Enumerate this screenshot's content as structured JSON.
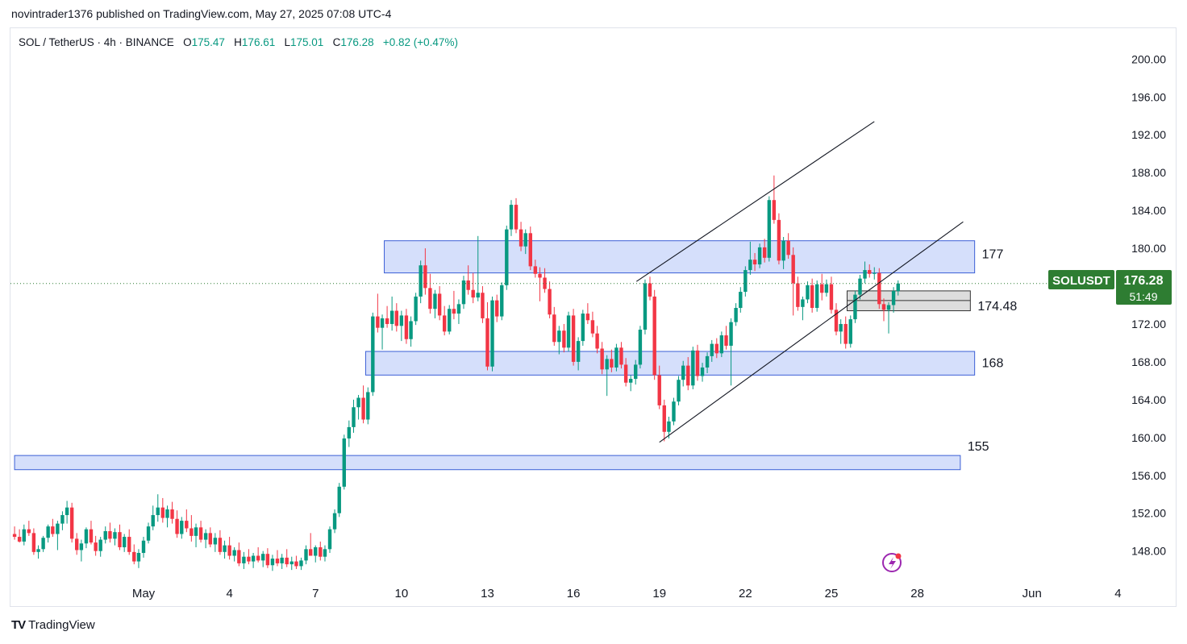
{
  "header": {
    "published_line": "novintrader1376 published on TradingView.com, May 27, 2025 07:08 UTC-4"
  },
  "legend": {
    "symbol": "SOL / TetherUS · 4h · BINANCE",
    "o_key": "O",
    "o_val": "175.47",
    "h_key": "H",
    "h_val": "176.61",
    "l_key": "L",
    "l_val": "175.01",
    "c_key": "C",
    "c_val": "176.28",
    "change": "+0.82 (+0.47%)"
  },
  "price_badge": {
    "symbol": "SOLUSDT",
    "price": "176.28",
    "countdown": "51:49",
    "color": "#2e7d32"
  },
  "footer": {
    "brand": "TradingView"
  },
  "colors": {
    "up": "#089981",
    "down": "#f23645",
    "zone_fill": "#d0dcfb",
    "zone_border": "#3b5fd6"
  },
  "chart_data": {
    "type": "candlestick",
    "timeframe": "4h",
    "y_ticks": [
      "200.00",
      "196.00",
      "192.00",
      "188.00",
      "184.00",
      "180.00",
      "176.00",
      "172.00",
      "168.00",
      "164.00",
      "160.00",
      "156.00",
      "152.00",
      "148.00"
    ],
    "ylim": [
      145.5,
      202.5
    ],
    "x_ticks": [
      {
        "label": "May",
        "day": 1
      },
      {
        "label": "4",
        "day": 4
      },
      {
        "label": "7",
        "day": 7
      },
      {
        "label": "10",
        "day": 10
      },
      {
        "label": "13",
        "day": 13
      },
      {
        "label": "16",
        "day": 16
      },
      {
        "label": "19",
        "day": 19
      },
      {
        "label": "22",
        "day": 22
      },
      {
        "label": "25",
        "day": 25
      },
      {
        "label": "28",
        "day": 28
      },
      {
        "label": "Jun",
        "day": 32
      },
      {
        "label": "4",
        "day": 35
      }
    ],
    "zones": [
      {
        "label": "177",
        "low": 177.4,
        "high": 180.8,
        "x_start_day": 9.4,
        "x_end_day": 30.0
      },
      {
        "label": "168",
        "low": 166.6,
        "high": 169.1,
        "x_start_day": 8.75,
        "x_end_day": 30.0
      },
      {
        "label": "155",
        "low": 156.6,
        "high": 158.1,
        "x_start_day": -3.5,
        "x_end_day": 29.5
      },
      {
        "label": "174.48",
        "low": 173.4,
        "high": 175.5,
        "x_start_day": 25.55,
        "x_end_day": 29.85,
        "mid": 174.48,
        "style": "gray"
      }
    ],
    "trendlines": [
      {
        "from": [
          18.2,
          176.5
        ],
        "to": [
          26.5,
          193.4
        ]
      },
      {
        "from": [
          19.0,
          159.5
        ],
        "to": [
          29.6,
          182.8
        ]
      }
    ],
    "last_price": 176.28,
    "candles_by_day": [
      [
        -3.5,
        149.8,
        150.6,
        149.2,
        149.5
      ],
      [
        -3.33,
        149.5,
        150.3,
        148.9,
        149.0
      ],
      [
        -3.17,
        149.0,
        150.8,
        148.6,
        150.3
      ],
      [
        -3.0,
        150.3,
        151.2,
        149.6,
        149.9
      ],
      [
        -2.83,
        149.9,
        150.4,
        147.6,
        147.9
      ],
      [
        -2.67,
        147.9,
        148.6,
        147.2,
        148.2
      ],
      [
        -2.5,
        148.2,
        149.6,
        147.9,
        149.4
      ],
      [
        -2.33,
        149.4,
        150.8,
        148.9,
        150.6
      ],
      [
        -2.17,
        150.6,
        151.4,
        149.5,
        149.8
      ],
      [
        -2.0,
        149.8,
        151.2,
        148.1,
        150.9
      ],
      [
        -1.83,
        150.9,
        152.2,
        150.2,
        151.8
      ],
      [
        -1.67,
        151.8,
        153.3,
        150.9,
        152.6
      ],
      [
        -1.5,
        152.6,
        153.1,
        148.9,
        149.3
      ],
      [
        -1.33,
        149.3,
        149.9,
        147.6,
        148.1
      ],
      [
        -1.17,
        148.1,
        149.2,
        146.9,
        148.8
      ],
      [
        -1.0,
        148.8,
        150.5,
        148.3,
        150.3
      ],
      [
        -0.83,
        150.3,
        151.2,
        148.7,
        148.9
      ],
      [
        -0.67,
        148.9,
        149.6,
        147.5,
        148.0
      ],
      [
        -0.5,
        148.0,
        149.5,
        147.4,
        149.2
      ],
      [
        -0.33,
        149.2,
        150.6,
        148.8,
        150.1
      ],
      [
        -0.17,
        150.1,
        151.0,
        148.9,
        149.3
      ],
      [
        0.0,
        149.3,
        150.4,
        148.6,
        150.0
      ],
      [
        0.17,
        150.0,
        150.8,
        148.1,
        148.4
      ],
      [
        0.33,
        148.4,
        149.8,
        147.9,
        149.5
      ],
      [
        0.5,
        149.5,
        150.3,
        147.6,
        147.9
      ],
      [
        0.67,
        147.9,
        148.7,
        146.6,
        146.9
      ],
      [
        0.83,
        146.9,
        148.2,
        146.2,
        147.8
      ],
      [
        1.0,
        147.8,
        149.5,
        147.3,
        149.1
      ],
      [
        1.17,
        149.1,
        151.0,
        148.8,
        150.6
      ],
      [
        1.33,
        150.6,
        152.8,
        150.2,
        151.8
      ],
      [
        1.5,
        151.8,
        154.0,
        151.1,
        152.6
      ],
      [
        1.67,
        152.6,
        153.6,
        151.0,
        151.5
      ],
      [
        1.83,
        151.5,
        152.8,
        150.5,
        152.4
      ],
      [
        2.0,
        152.4,
        153.2,
        150.9,
        151.4
      ],
      [
        2.17,
        151.4,
        152.3,
        149.4,
        149.8
      ],
      [
        2.33,
        149.8,
        151.6,
        149.3,
        151.2
      ],
      [
        2.5,
        151.2,
        152.4,
        150.0,
        150.4
      ],
      [
        2.67,
        150.4,
        151.8,
        149.0,
        149.6
      ],
      [
        2.83,
        149.6,
        150.9,
        148.4,
        150.5
      ],
      [
        3.0,
        150.5,
        151.2,
        148.9,
        149.2
      ],
      [
        3.17,
        149.2,
        150.3,
        148.3,
        149.9
      ],
      [
        3.33,
        149.9,
        150.5,
        148.4,
        148.7
      ],
      [
        3.5,
        148.7,
        149.9,
        147.9,
        149.4
      ],
      [
        3.67,
        149.4,
        150.2,
        147.6,
        147.9
      ],
      [
        3.83,
        147.9,
        149.1,
        147.2,
        148.6
      ],
      [
        4.0,
        148.6,
        149.5,
        147.1,
        147.5
      ],
      [
        4.17,
        147.5,
        148.4,
        146.9,
        148.1
      ],
      [
        4.33,
        148.1,
        148.9,
        146.4,
        146.7
      ],
      [
        4.5,
        146.7,
        147.9,
        146.1,
        147.4
      ],
      [
        4.67,
        147.4,
        148.2,
        146.6,
        146.9
      ],
      [
        4.83,
        146.9,
        147.8,
        146.2,
        147.5
      ],
      [
        5.0,
        147.5,
        148.4,
        146.8,
        147.0
      ],
      [
        5.17,
        147.0,
        148.0,
        146.3,
        147.7
      ],
      [
        5.33,
        147.7,
        148.3,
        146.2,
        146.5
      ],
      [
        5.5,
        146.5,
        147.6,
        145.9,
        147.2
      ],
      [
        5.67,
        147.2,
        148.1,
        146.4,
        146.7
      ],
      [
        5.83,
        146.7,
        147.7,
        146.1,
        147.3
      ],
      [
        6.0,
        147.3,
        148.2,
        146.3,
        146.6
      ],
      [
        6.17,
        146.6,
        147.4,
        146.0,
        146.9
      ],
      [
        6.33,
        146.9,
        147.5,
        146.1,
        146.4
      ],
      [
        6.5,
        146.4,
        147.3,
        146.0,
        147.0
      ],
      [
        6.67,
        147.0,
        148.6,
        146.6,
        148.2
      ],
      [
        6.83,
        148.2,
        149.9,
        147.9,
        147.5
      ],
      [
        7.0,
        147.5,
        148.6,
        146.8,
        148.4
      ],
      [
        7.17,
        148.4,
        149.0,
        147.0,
        147.4
      ],
      [
        7.33,
        147.4,
        148.6,
        146.9,
        148.2
      ],
      [
        7.5,
        148.2,
        150.6,
        147.8,
        150.3
      ],
      [
        7.67,
        150.3,
        152.4,
        149.9,
        152.0
      ],
      [
        7.83,
        152.0,
        155.2,
        151.6,
        154.8
      ],
      [
        8.0,
        154.8,
        160.3,
        154.5,
        159.9
      ],
      [
        8.17,
        159.9,
        161.8,
        159.0,
        161.1
      ],
      [
        8.33,
        161.1,
        164.0,
        160.5,
        163.2
      ],
      [
        8.5,
        163.2,
        164.5,
        161.9,
        164.2
      ],
      [
        8.67,
        164.2,
        165.5,
        161.5,
        161.9
      ],
      [
        8.83,
        161.9,
        165.3,
        161.4,
        164.8
      ],
      [
        9.0,
        164.8,
        173.2,
        164.4,
        172.8
      ],
      [
        9.17,
        172.8,
        175.2,
        171.1,
        171.6
      ],
      [
        9.33,
        171.6,
        173.0,
        169.3,
        172.6
      ],
      [
        9.5,
        172.6,
        173.9,
        171.6,
        172.0
      ],
      [
        9.67,
        172.0,
        174.9,
        171.3,
        173.4
      ],
      [
        9.83,
        173.4,
        174.2,
        171.2,
        171.8
      ],
      [
        10.0,
        171.8,
        173.4,
        170.2,
        172.9
      ],
      [
        10.17,
        172.9,
        173.6,
        169.9,
        170.4
      ],
      [
        10.33,
        170.4,
        172.8,
        169.6,
        172.3
      ],
      [
        10.5,
        172.3,
        175.3,
        171.9,
        174.9
      ],
      [
        10.67,
        174.9,
        178.7,
        174.2,
        178.2
      ],
      [
        10.83,
        178.2,
        180.0,
        175.1,
        175.8
      ],
      [
        11.0,
        175.8,
        177.3,
        173.1,
        173.6
      ],
      [
        11.17,
        173.6,
        175.6,
        172.6,
        175.2
      ],
      [
        11.33,
        175.2,
        176.0,
        172.4,
        172.9
      ],
      [
        11.5,
        172.9,
        173.9,
        170.8,
        171.2
      ],
      [
        11.67,
        171.2,
        174.0,
        170.9,
        173.6
      ],
      [
        11.83,
        173.6,
        175.5,
        172.5,
        173.1
      ],
      [
        12.0,
        173.1,
        174.6,
        172.0,
        174.1
      ],
      [
        12.17,
        174.1,
        177.1,
        173.6,
        176.6
      ],
      [
        12.33,
        176.6,
        178.2,
        175.1,
        175.6
      ],
      [
        12.5,
        175.6,
        177.4,
        174.2,
        174.8
      ],
      [
        12.67,
        174.8,
        181.3,
        174.4,
        175.3
      ],
      [
        12.83,
        175.3,
        176.0,
        172.1,
        172.6
      ],
      [
        13.0,
        172.6,
        174.3,
        167.1,
        167.5
      ],
      [
        13.17,
        167.5,
        174.9,
        167.0,
        174.5
      ],
      [
        13.33,
        174.5,
        175.1,
        172.2,
        172.8
      ],
      [
        13.5,
        172.8,
        176.4,
        172.4,
        176.1
      ],
      [
        13.67,
        176.1,
        182.4,
        175.6,
        182.0
      ],
      [
        13.83,
        182.0,
        185.1,
        181.3,
        184.6
      ],
      [
        14.0,
        184.6,
        185.3,
        181.6,
        182.0
      ],
      [
        14.17,
        182.0,
        182.8,
        179.7,
        180.2
      ],
      [
        14.33,
        180.2,
        182.0,
        179.4,
        181.6
      ],
      [
        14.5,
        181.6,
        182.3,
        177.7,
        178.1
      ],
      [
        14.67,
        178.1,
        178.8,
        176.9,
        177.3
      ],
      [
        14.83,
        177.3,
        178.0,
        174.4,
        176.9
      ],
      [
        15.0,
        176.9,
        177.9,
        175.3,
        175.7
      ],
      [
        15.17,
        175.7,
        176.5,
        172.6,
        173.0
      ],
      [
        15.33,
        173.0,
        173.8,
        169.7,
        170.1
      ],
      [
        15.5,
        170.1,
        171.8,
        168.8,
        171.3
      ],
      [
        15.67,
        171.3,
        172.0,
        169.0,
        169.5
      ],
      [
        15.83,
        169.5,
        173.3,
        169.1,
        172.9
      ],
      [
        16.0,
        172.9,
        173.6,
        167.6,
        168.0
      ],
      [
        16.17,
        168.0,
        170.6,
        167.1,
        170.2
      ],
      [
        16.33,
        170.2,
        173.5,
        169.7,
        173.1
      ],
      [
        16.5,
        173.1,
        174.2,
        172.0,
        172.4
      ],
      [
        16.67,
        172.4,
        173.3,
        170.6,
        171.0
      ],
      [
        16.83,
        171.0,
        171.8,
        168.9,
        169.4
      ],
      [
        17.0,
        169.4,
        170.1,
        166.7,
        167.2
      ],
      [
        17.17,
        167.2,
        168.7,
        164.4,
        168.3
      ],
      [
        17.33,
        168.3,
        169.3,
        166.9,
        167.4
      ],
      [
        17.5,
        167.4,
        169.9,
        167.0,
        169.5
      ],
      [
        17.67,
        169.5,
        170.1,
        167.3,
        167.7
      ],
      [
        17.83,
        167.7,
        168.4,
        165.4,
        165.8
      ],
      [
        18.0,
        165.8,
        166.6,
        164.9,
        166.2
      ],
      [
        18.17,
        166.2,
        168.2,
        165.6,
        167.7
      ],
      [
        18.33,
        167.7,
        171.8,
        167.3,
        171.4
      ],
      [
        18.5,
        171.4,
        176.7,
        170.9,
        176.3
      ],
      [
        18.67,
        176.3,
        177.0,
        174.5,
        174.9
      ],
      [
        18.83,
        174.9,
        175.6,
        166.1,
        166.6
      ],
      [
        19.0,
        166.6,
        167.6,
        163.0,
        163.4
      ],
      [
        19.17,
        163.4,
        164.0,
        159.6,
        160.6
      ],
      [
        19.33,
        160.6,
        162.2,
        159.9,
        161.7
      ],
      [
        19.5,
        161.7,
        164.2,
        161.3,
        163.8
      ],
      [
        19.67,
        163.8,
        166.5,
        163.4,
        166.1
      ],
      [
        19.83,
        166.1,
        168.1,
        165.4,
        167.6
      ],
      [
        20.0,
        167.6,
        168.5,
        165.0,
        165.5
      ],
      [
        20.17,
        165.5,
        169.6,
        165.1,
        169.2
      ],
      [
        20.33,
        169.2,
        169.8,
        166.0,
        166.5
      ],
      [
        20.5,
        166.5,
        167.9,
        165.9,
        167.4
      ],
      [
        20.67,
        167.4,
        169.0,
        166.8,
        168.6
      ],
      [
        20.83,
        168.6,
        170.3,
        168.0,
        169.9
      ],
      [
        21.0,
        169.9,
        170.5,
        168.4,
        168.9
      ],
      [
        21.17,
        168.9,
        171.2,
        168.5,
        170.8
      ],
      [
        21.33,
        170.8,
        171.8,
        169.3,
        169.7
      ],
      [
        21.5,
        169.7,
        172.6,
        165.5,
        172.2
      ],
      [
        21.67,
        172.2,
        174.2,
        171.8,
        173.7
      ],
      [
        21.83,
        173.7,
        175.9,
        173.2,
        175.4
      ],
      [
        22.0,
        175.4,
        178.1,
        174.9,
        177.7
      ],
      [
        22.17,
        177.7,
        180.7,
        177.2,
        178.8
      ],
      [
        22.33,
        178.8,
        179.5,
        177.6,
        178.3
      ],
      [
        22.5,
        178.3,
        180.5,
        177.9,
        180.1
      ],
      [
        22.67,
        180.1,
        181.0,
        178.5,
        179.0
      ],
      [
        22.83,
        179.0,
        185.5,
        178.6,
        185.1
      ],
      [
        23.0,
        185.1,
        187.7,
        182.6,
        183.0
      ],
      [
        23.17,
        183.0,
        183.7,
        178.3,
        178.7
      ],
      [
        23.33,
        178.7,
        181.2,
        177.8,
        180.8
      ],
      [
        23.5,
        180.8,
        181.6,
        178.9,
        179.3
      ],
      [
        23.67,
        179.3,
        180.1,
        172.9,
        176.3
      ],
      [
        23.83,
        176.3,
        177.0,
        173.4,
        173.8
      ],
      [
        24.0,
        173.8,
        174.9,
        172.4,
        174.6
      ],
      [
        24.17,
        174.6,
        176.5,
        174.2,
        176.1
      ],
      [
        24.33,
        176.1,
        176.8,
        173.2,
        173.7
      ],
      [
        24.5,
        173.7,
        176.6,
        173.3,
        176.2
      ],
      [
        24.67,
        176.2,
        177.3,
        174.5,
        175.3
      ],
      [
        24.83,
        175.3,
        176.7,
        174.9,
        176.2
      ],
      [
        25.0,
        176.2,
        177.0,
        173.1,
        173.5
      ],
      [
        25.17,
        173.5,
        174.2,
        170.8,
        171.2
      ],
      [
        25.33,
        171.2,
        172.5,
        169.9,
        172.0
      ],
      [
        25.5,
        172.0,
        172.8,
        169.4,
        169.9
      ],
      [
        25.67,
        169.9,
        172.9,
        169.5,
        172.5
      ],
      [
        25.83,
        172.5,
        175.5,
        172.1,
        175.1
      ],
      [
        26.0,
        175.1,
        177.2,
        174.6,
        176.8
      ],
      [
        26.17,
        176.8,
        178.6,
        176.3,
        177.7
      ],
      [
        26.33,
        177.7,
        178.3,
        176.9,
        177.3
      ],
      [
        26.5,
        177.3,
        178.0,
        176.7,
        177.4
      ],
      [
        26.67,
        177.4,
        177.9,
        173.6,
        174.1
      ],
      [
        26.83,
        174.1,
        174.7,
        172.3,
        173.5
      ],
      [
        27.0,
        173.5,
        174.3,
        171.0,
        174.0
      ],
      [
        27.17,
        174.0,
        175.9,
        173.2,
        175.5
      ],
      [
        27.33,
        175.47,
        176.61,
        175.01,
        176.28
      ]
    ]
  }
}
